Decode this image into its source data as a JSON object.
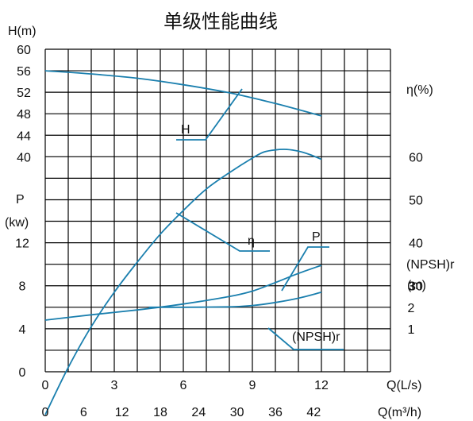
{
  "chart_data": {
    "type": "line",
    "title": "单级性能曲线",
    "axes": {
      "head_label": "H(m)",
      "head_ticks": [
        "60",
        "56",
        "52",
        "48",
        "44",
        "40"
      ],
      "power_label_1": "P",
      "power_label_2": "(kw)",
      "power_ticks": [
        "12",
        "8",
        "4",
        "0"
      ],
      "eff_label": "η(%)",
      "eff_ticks": [
        "60",
        "50",
        "40",
        "30"
      ],
      "npsh_label_1": "(NPSH)r",
      "npsh_label_2": "(m)",
      "npsh_ticks": [
        "3",
        "2",
        "1"
      ],
      "q_ls_label": "Q(L/s)",
      "q_ls_ticks": [
        "0",
        "3",
        "6",
        "9",
        "12"
      ],
      "q_m3h_label": "Q(m³/h)",
      "q_m3h_ticks": [
        "0",
        "6",
        "12",
        "18",
        "24",
        "30",
        "36",
        "42"
      ]
    },
    "series": [
      {
        "name": "H",
        "unit": "m",
        "x": [
          0,
          2,
          4,
          6,
          8,
          10,
          12
        ],
        "values": [
          56,
          55.4,
          54.6,
          53.4,
          51.9,
          49.9,
          47.6
        ]
      },
      {
        "name": "η",
        "unit": "%",
        "x": [
          0,
          1,
          2,
          3,
          4,
          5,
          6,
          7,
          8,
          9,
          9.5,
          10,
          10.5,
          11,
          11.5,
          12
        ],
        "values": [
          0,
          11,
          20.5,
          28.5,
          35.5,
          42,
          47.5,
          52.5,
          56.3,
          59.7,
          61.1,
          61.6,
          61.7,
          61.3,
          60.5,
          59.4
        ]
      },
      {
        "name": "P",
        "unit": "kw",
        "x": [
          0,
          2,
          4,
          6,
          8,
          9,
          10,
          11,
          12
        ],
        "values": [
          4.8,
          5.3,
          5.75,
          6.3,
          7,
          7.5,
          8.3,
          9.15,
          9.9
        ]
      },
      {
        "name": "(NPSH)r",
        "unit": "m",
        "x": [
          4.5,
          6,
          8,
          9,
          10,
          11,
          12
        ],
        "values": [
          2,
          2,
          2.02,
          2.08,
          2.22,
          2.42,
          2.7
        ]
      }
    ],
    "curve_labels": {
      "H": "H",
      "eta": "η",
      "P": "P",
      "npsh": "(NPSH)r"
    },
    "grid": true,
    "colors": {
      "curve": "#1a7fae",
      "grid": "#000000"
    }
  }
}
